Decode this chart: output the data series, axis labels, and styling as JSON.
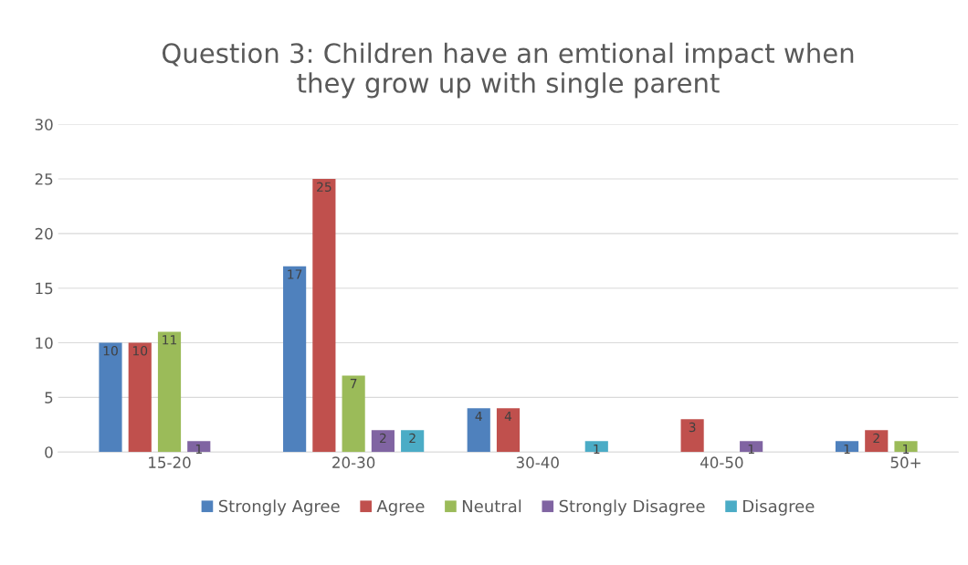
{
  "chart_data": {
    "type": "bar",
    "title": "Question 3: Children have an emtional impact when\nthey grow up with single parent",
    "categories": [
      "15-20",
      "20-30",
      "30-40",
      "40-50",
      "50+"
    ],
    "series": [
      {
        "name": "Strongly Agree",
        "color": "#4f81bd",
        "values": [
          10,
          17,
          4,
          null,
          1
        ],
        "value_labels": [
          "10",
          "17",
          "4",
          null,
          "1"
        ]
      },
      {
        "name": "Agree",
        "color": "#c0504d",
        "values": [
          10,
          25,
          4,
          3,
          2
        ],
        "value_labels": [
          "10",
          "25",
          "4",
          "3",
          "2"
        ]
      },
      {
        "name": "Neutral",
        "color": "#9bbb59",
        "values": [
          11,
          7,
          null,
          null,
          1
        ],
        "value_labels": [
          "11",
          "7",
          null,
          null,
          "1"
        ]
      },
      {
        "name": "Strongly Disagree",
        "color": "#8064a2",
        "values": [
          1,
          2,
          null,
          1,
          null
        ],
        "value_labels": [
          "1",
          "2",
          null,
          "1",
          null
        ]
      },
      {
        "name": "Disagree",
        "color": "#4bacc6",
        "values": [
          null,
          2,
          1,
          null,
          null
        ],
        "value_labels": [
          null,
          "2",
          "1",
          null,
          null
        ]
      }
    ],
    "ylim": [
      0,
      30
    ],
    "yticks": [
      0,
      5,
      10,
      15,
      20,
      25,
      30
    ],
    "grid": "y",
    "legend": "bottom"
  }
}
